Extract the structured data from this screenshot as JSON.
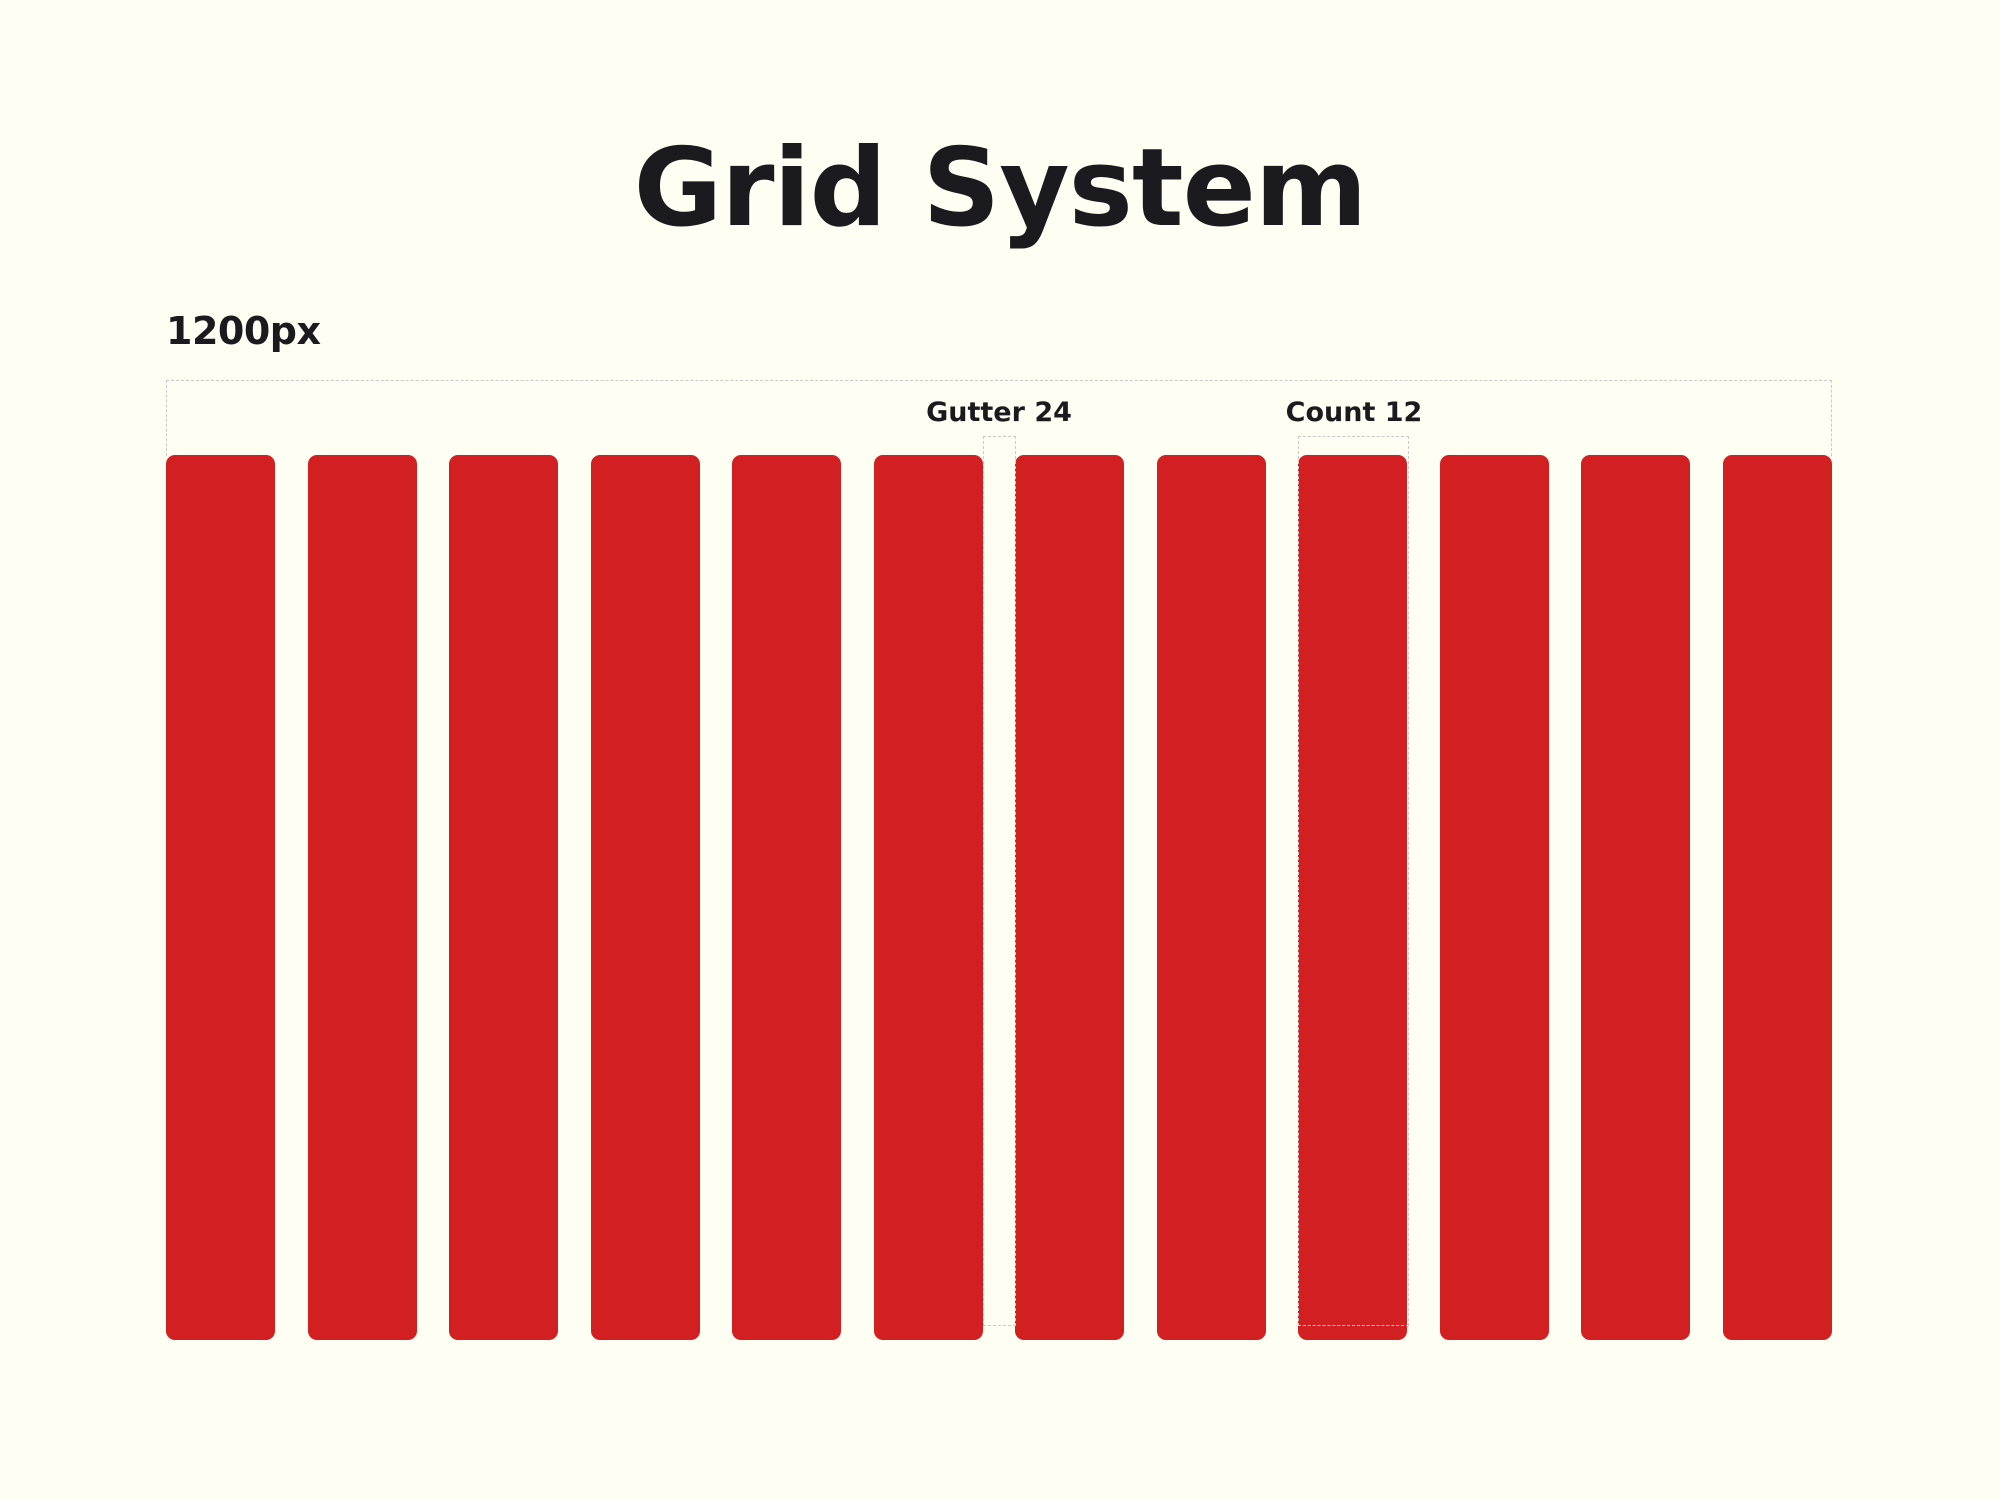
{
  "title": "Grid System",
  "container_width_label": "1200px",
  "annotations": {
    "gutter_label": "Gutter 24",
    "count_label": "Count 12"
  },
  "grid": {
    "column_count": 12,
    "gutter": 24,
    "container_width": 1200,
    "column_color": "#D21F21",
    "background_color": "#FEFEF2",
    "text_color": "#1B1B1F",
    "guide_color": "#C9C9C9"
  }
}
